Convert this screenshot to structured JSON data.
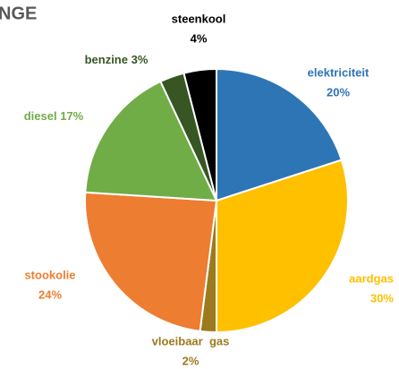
{
  "chart_data": {
    "type": "pie",
    "title": "NGE",
    "categories": [
      "elektriciteit",
      "aardgas",
      "vloeibaar  gas",
      "stookolie",
      "diesel",
      "benzine",
      "steenkool"
    ],
    "values": [
      20,
      30,
      2,
      24,
      17,
      3,
      4
    ],
    "value_labels": [
      "20%",
      "30%",
      "2%",
      "24%",
      "17%",
      "3%",
      "4%"
    ],
    "colors": [
      "#2e75b6",
      "#ffc000",
      "#9c7a1e",
      "#ed7d31",
      "#70ad47",
      "#375623",
      "#000000"
    ]
  }
}
